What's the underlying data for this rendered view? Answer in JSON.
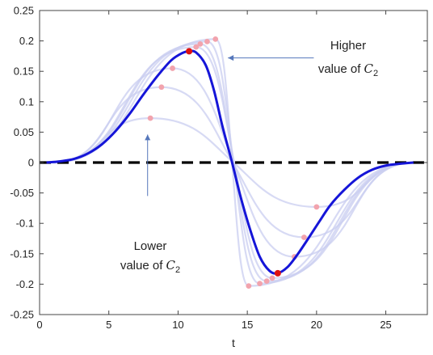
{
  "chart_data": {
    "type": "line",
    "title": "",
    "xlabel": "t",
    "ylabel": "",
    "xlim": [
      0,
      28
    ],
    "ylim": [
      -0.25,
      0.25
    ],
    "x_ticks": [
      0,
      5,
      10,
      15,
      20,
      25
    ],
    "x_tick_labels": [
      "0",
      "5",
      "10",
      "15",
      "20",
      "25"
    ],
    "y_ticks": [
      0.25,
      0.2,
      0.15,
      0.1,
      0.05,
      0,
      -0.05,
      -0.1,
      -0.15,
      -0.2,
      -0.25
    ],
    "y_tick_labels": [
      "0.25",
      "0.2",
      "0.15",
      "0.1",
      "0.05",
      "0",
      "-0.05",
      "-0.1",
      "-0.15",
      "-0.2",
      "-0.25"
    ],
    "grid": false,
    "colors": {
      "main_curve": "#1515d8",
      "faint_curves": "#c9cdf0",
      "baseline": "#000000",
      "peak_marker": "#dd1111",
      "faint_marker": "#f2a3ad",
      "arrow": "#5577bb"
    },
    "baseline": {
      "y": 0,
      "style": "dashed"
    },
    "main_series": {
      "peak": [
        10.8,
        0.183
      ],
      "trough": [
        17.2,
        -0.182
      ],
      "points": [
        [
          0.5,
          0
        ],
        [
          1.5,
          0.002
        ],
        [
          2.5,
          0.006
        ],
        [
          3.5,
          0.015
        ],
        [
          4.5,
          0.03
        ],
        [
          5.5,
          0.052
        ],
        [
          6.5,
          0.08
        ],
        [
          7.5,
          0.112
        ],
        [
          8.5,
          0.142
        ],
        [
          9.5,
          0.168
        ],
        [
          10.3,
          0.18
        ],
        [
          10.8,
          0.183
        ],
        [
          11.3,
          0.181
        ],
        [
          12.0,
          0.16
        ],
        [
          12.6,
          0.118
        ],
        [
          13.2,
          0.06
        ],
        [
          13.9,
          0
        ],
        [
          14.5,
          -0.055
        ],
        [
          15.2,
          -0.11
        ],
        [
          15.9,
          -0.155
        ],
        [
          16.6,
          -0.178
        ],
        [
          17.2,
          -0.182
        ],
        [
          17.9,
          -0.172
        ],
        [
          18.6,
          -0.152
        ],
        [
          19.4,
          -0.125
        ],
        [
          20.2,
          -0.097
        ],
        [
          21.0,
          -0.07
        ],
        [
          22.0,
          -0.045
        ],
        [
          23.0,
          -0.025
        ],
        [
          24.0,
          -0.012
        ],
        [
          25.0,
          -0.005
        ],
        [
          26.0,
          -0.002
        ],
        [
          27.0,
          0
        ]
      ]
    },
    "faint_series": [
      {
        "peak": [
          8.0,
          0.073
        ],
        "trough": [
          20.0,
          -0.073
        ]
      },
      {
        "peak": [
          8.8,
          0.124
        ],
        "trough": [
          19.1,
          -0.123
        ]
      },
      {
        "peak": [
          9.6,
          0.155
        ],
        "trough": [
          18.4,
          -0.155
        ]
      },
      {
        "peak": [
          11.3,
          0.19
        ],
        "trough": [
          16.8,
          -0.19
        ]
      },
      {
        "peak": [
          11.6,
          0.195
        ],
        "trough": [
          16.4,
          -0.195
        ]
      },
      {
        "peak": [
          12.1,
          0.199
        ],
        "trough": [
          15.9,
          -0.199
        ]
      },
      {
        "peak": [
          12.7,
          0.203
        ],
        "trough": [
          15.1,
          -0.203
        ]
      }
    ],
    "annotations": [
      {
        "id": "higher",
        "line1": "Higher",
        "line2_prefix": "value of ",
        "math_base": "C",
        "math_sub": "2",
        "arrow_from": [
          19.8,
          0.172
        ],
        "arrow_to": [
          13.6,
          0.172
        ]
      },
      {
        "id": "lower",
        "line1": "Lower",
        "line2_prefix": "value of ",
        "math_base": "C",
        "math_sub": "2",
        "arrow_from": [
          7.8,
          -0.055
        ],
        "arrow_to": [
          7.8,
          0.046
        ]
      }
    ]
  }
}
